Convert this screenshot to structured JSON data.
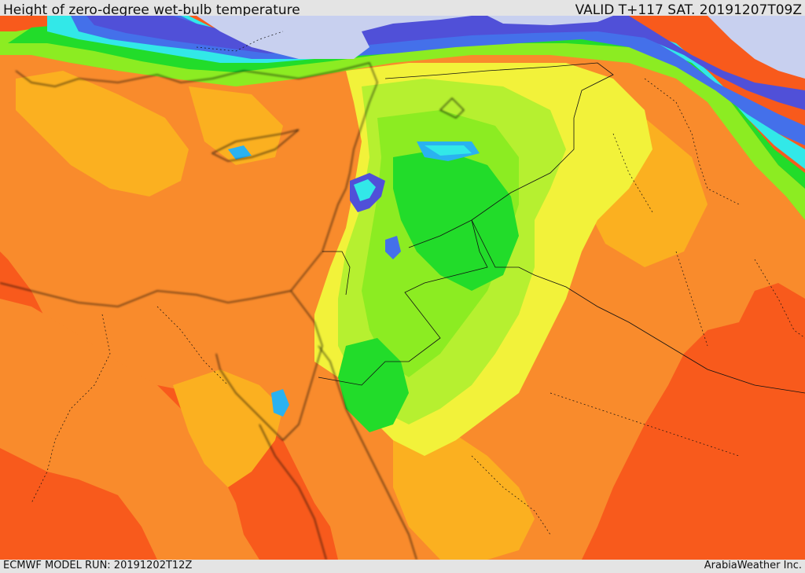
{
  "header": {
    "title": "Height of zero-degree wet-bulb temperature",
    "valid_time": "VALID T+117 SAT. 20191207T09Z"
  },
  "footer": {
    "model_run": "ECMWF MODEL RUN: 20191202T12Z",
    "credit": "ArabiaWeather Inc."
  },
  "colors": {
    "background": "#e4e4e4",
    "red": "#f85a1c",
    "orange": "#f98b2c",
    "amber": "#fbb020",
    "yellow": "#f2f23a",
    "lime": "#b6f030",
    "green": "#8cec22",
    "bright-green": "#22dc2a",
    "cyan": "#32e8e8",
    "sky": "#2ab2f0",
    "blue": "#4470ea",
    "indigo": "#5050d8",
    "lavender": "#c8d0ef",
    "borders": "#111111"
  }
}
